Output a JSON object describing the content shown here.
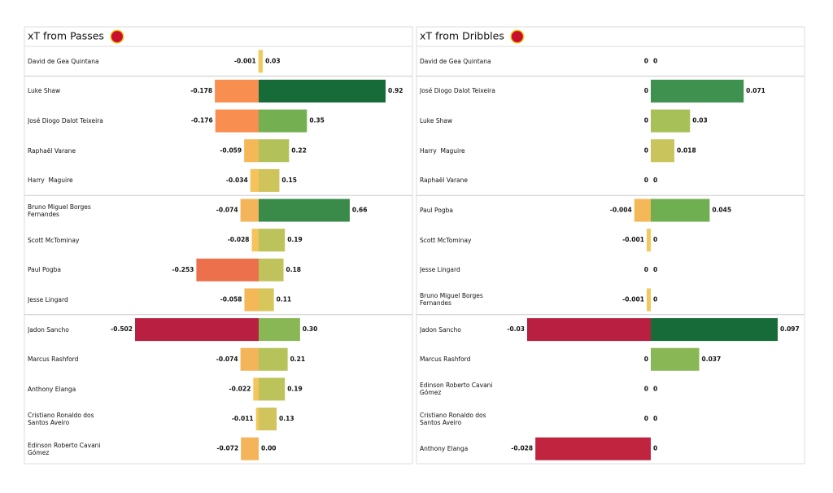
{
  "chart_data": [
    {
      "type": "diverging-bar",
      "title": "xT from Passes",
      "categories": [
        "David de Gea Quintana",
        "Luke Shaw",
        "José Diogo Dalot Teixeira",
        "Raphaël Varane",
        "Harry  Maguire",
        "Bruno Miguel Borges Fernandes",
        "Scott McTominay",
        "Paul Pogba",
        "Jesse Lingard",
        "Jadon Sancho",
        "Marcus Rashford",
        "Anthony Elanga",
        "Cristiano Ronaldo dos Santos Aveiro",
        "Edinson Roberto Cavani Gómez"
      ],
      "series": [
        {
          "values": [
            -0.001,
            -0.178,
            -0.176,
            -0.059,
            -0.034,
            -0.074,
            -0.028,
            -0.253,
            -0.058,
            -0.502,
            -0.074,
            -0.022,
            -0.011,
            -0.072
          ],
          "colors": [
            "#f0c85e",
            "#f88e4f",
            "#f88e4f",
            "#f5b858",
            "#f5c25c",
            "#f4b45a",
            "#f5c45c",
            "#ec704c",
            "#f5b858",
            "#b91f40",
            "#f4b45a",
            "#f5c45c",
            "#f0c85e",
            "#f4b45a"
          ]
        },
        {
          "values": [
            0.03,
            0.92,
            0.35,
            0.22,
            0.15,
            0.66,
            0.19,
            0.18,
            0.11,
            0.3,
            0.21,
            0.19,
            0.13,
            0
          ],
          "value_labels": [
            "0.03",
            "0.92",
            "0.35",
            "0.22",
            "0.15",
            "0.66",
            "0.19",
            "0.18",
            "0.11",
            "0.30",
            "0.21",
            "0.19",
            "0.13",
            "0.00"
          ],
          "colors": [
            "#ebcd5e",
            "#166b38",
            "#74b052",
            "#b3c15a",
            "#cfc45c",
            "#3a8b4a",
            "#bcc35b",
            "#c0c35b",
            "#d6c65c",
            "#8ab755",
            "#b6c25a",
            "#bcc35b",
            "#d2c45c",
            "#f0c85e"
          ]
        }
      ]
    },
    {
      "type": "diverging-bar",
      "title": "xT from Dribbles",
      "categories": [
        "David de Gea Quintana",
        "José Diogo Dalot Teixeira",
        "Luke Shaw",
        "Harry  Maguire",
        "Raphaël Varane",
        "Paul Pogba",
        "Scott McTominay",
        "Jesse Lingard",
        "Bruno Miguel Borges Fernandes",
        "Jadon Sancho",
        "Marcus Rashford",
        "Edinson Roberto Cavani Gómez",
        "Cristiano Ronaldo dos Santos Aveiro",
        "Anthony Elanga"
      ],
      "series": [
        {
          "values": [
            0,
            0,
            0,
            0,
            0,
            -0.004,
            -0.001,
            0,
            -0.001,
            -0.03,
            0,
            0,
            0,
            -0.028
          ],
          "colors": [
            "#f0c85e",
            "#f0c85e",
            "#f0c85e",
            "#f0c85e",
            "#f0c85e",
            "#f5b858",
            "#f0c85e",
            "#f0c85e",
            "#f0c85e",
            "#b91f40",
            "#f0c85e",
            "#f0c85e",
            "#f0c85e",
            "#c0243f"
          ]
        },
        {
          "values": [
            0,
            0.071,
            0.03,
            0.018,
            0,
            0.045,
            0,
            0,
            0,
            0.097,
            0.037,
            0,
            0,
            0
          ],
          "colors": [
            "#f0c85e",
            "#3f9150",
            "#a7c058",
            "#c9c45c",
            "#f0c85e",
            "#70ae52",
            "#f0c85e",
            "#f0c85e",
            "#f0c85e",
            "#166b38",
            "#8ab755",
            "#f0c85e",
            "#f0c85e",
            "#f0c85e"
          ]
        }
      ]
    }
  ]
}
